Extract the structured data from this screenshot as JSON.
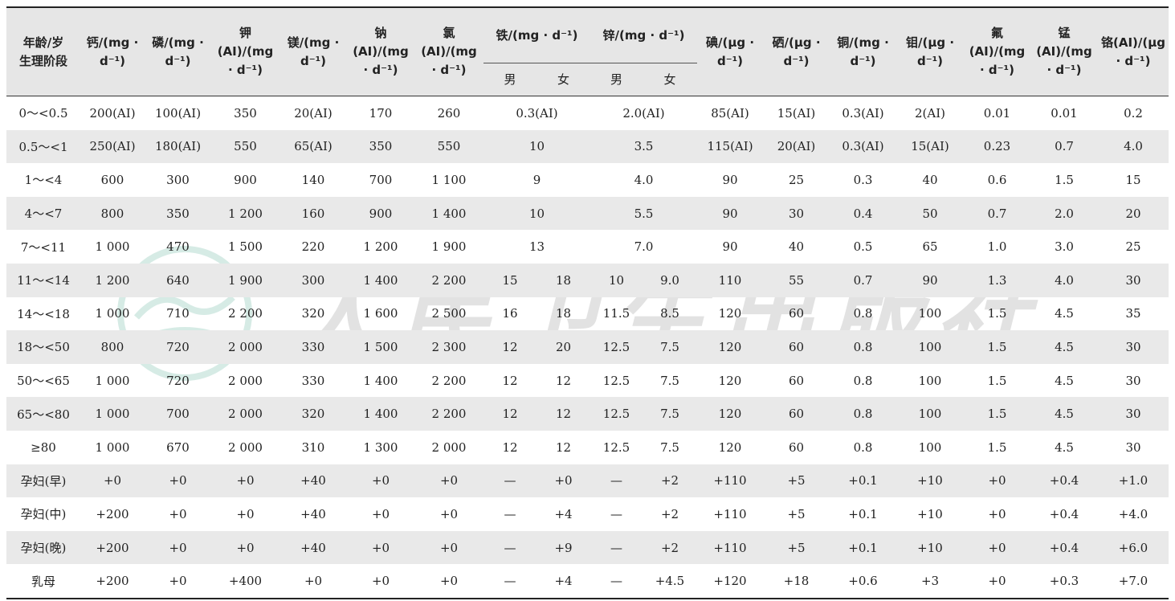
{
  "header": {
    "first_column": [
      "年龄/岁",
      "生理阶段"
    ],
    "columns": [
      "钙/(mg · d⁻¹)",
      "磷/(mg · d⁻¹)",
      "钾(AI)/(mg · d⁻¹)",
      "镁/(mg · d⁻¹)",
      "钠(AI)/(mg · d⁻¹)",
      "氯(AI)/(mg · d⁻¹)",
      "铁/(mg · d⁻¹)",
      "锌/(mg · d⁻¹)",
      "碘/(μg · d⁻¹)",
      "硒/(μg · d⁻¹)",
      "铜/(mg · d⁻¹)",
      "钼/(μg · d⁻¹)",
      "氟(AI)/(mg · d⁻¹)",
      "锰(AI)/(mg · d⁻¹)",
      "铬(AI)/(μg · d⁻¹)"
    ],
    "sub_labels": [
      "男",
      "女",
      "男",
      "女"
    ]
  },
  "table": {
    "rows": [
      [
        "0～<0.5",
        "200(AI)",
        "100(AI)",
        "350",
        "20(AI)",
        "170",
        "260",
        "0.3(AI)",
        "2.0(AI)",
        "85(AI)",
        "15(AI)",
        "0.3(AI)",
        "2(AI)",
        "0.01",
        "0.01",
        "0.2"
      ],
      [
        "0.5～<1",
        "250(AI)",
        "180(AI)",
        "550",
        "65(AI)",
        "350",
        "550",
        "10",
        "3.5",
        "115(AI)",
        "20(AI)",
        "0.3(AI)",
        "15(AI)",
        "0.23",
        "0.7",
        "4.0"
      ],
      [
        "1～<4",
        "600",
        "300",
        "900",
        "140",
        "700",
        "1 100",
        "9",
        "4.0",
        "90",
        "25",
        "0.3",
        "40",
        "0.6",
        "1.5",
        "15"
      ],
      [
        "4～<7",
        "800",
        "350",
        "1 200",
        "160",
        "900",
        "1 400",
        "10",
        "5.5",
        "90",
        "30",
        "0.4",
        "50",
        "0.7",
        "2.0",
        "20"
      ],
      [
        "7～<11",
        "1 000",
        "470",
        "1 500",
        "220",
        "1 200",
        "1 900",
        "13",
        "7.0",
        "90",
        "40",
        "0.5",
        "65",
        "1.0",
        "3.0",
        "25"
      ],
      [
        "11～<14",
        "1 200",
        "640",
        "1 900",
        "300",
        "1 400",
        "2 200",
        "15",
        "18",
        "10",
        "9.0",
        "110",
        "55",
        "0.7",
        "90",
        "1.3",
        "4.0",
        "30"
      ],
      [
        "14～<18",
        "1 000",
        "710",
        "2 200",
        "320",
        "1 600",
        "2 500",
        "16",
        "18",
        "11.5",
        "8.5",
        "120",
        "60",
        "0.8",
        "100",
        "1.5",
        "4.5",
        "35"
      ],
      [
        "18～<50",
        "800",
        "720",
        "2 000",
        "330",
        "1 500",
        "2 300",
        "12",
        "20",
        "12.5",
        "7.5",
        "120",
        "60",
        "0.8",
        "100",
        "1.5",
        "4.5",
        "30"
      ],
      [
        "50～<65",
        "1 000",
        "720",
        "2 000",
        "330",
        "1 400",
        "2 200",
        "12",
        "12",
        "12.5",
        "7.5",
        "120",
        "60",
        "0.8",
        "100",
        "1.5",
        "4.5",
        "30"
      ],
      [
        "65～<80",
        "1 000",
        "700",
        "2 000",
        "320",
        "1 400",
        "2 200",
        "12",
        "12",
        "12.5",
        "7.5",
        "120",
        "60",
        "0.8",
        "100",
        "1.5",
        "4.5",
        "30"
      ],
      [
        "≥80",
        "1 000",
        "670",
        "2 000",
        "310",
        "1 300",
        "2 000",
        "12",
        "12",
        "12.5",
        "7.5",
        "120",
        "60",
        "0.8",
        "100",
        "1.5",
        "4.5",
        "30"
      ],
      [
        "孕妇(早)",
        "+0",
        "+0",
        "+0",
        "+40",
        "+0",
        "+0",
        "—",
        "+0",
        "—",
        "+2",
        "+110",
        "+5",
        "+0.1",
        "+10",
        "+0",
        "+0.4",
        "+1.0"
      ],
      [
        "孕妇(中)",
        "+200",
        "+0",
        "+0",
        "+40",
        "+0",
        "+0",
        "—",
        "+4",
        "—",
        "+2",
        "+110",
        "+5",
        "+0.1",
        "+10",
        "+0",
        "+0.4",
        "+4.0"
      ],
      [
        "孕妇(晚)",
        "+200",
        "+0",
        "+0",
        "+40",
        "+0",
        "+0",
        "—",
        "+9",
        "—",
        "+2",
        "+110",
        "+5",
        "+0.1",
        "+10",
        "+0",
        "+0.4",
        "+6.0"
      ],
      [
        "乳母",
        "+200",
        "+0",
        "+400",
        "+0",
        "+0",
        "+0",
        "—",
        "+4",
        "—",
        "+4.5",
        "+120",
        "+18",
        "+0.6",
        "+3",
        "+0",
        "+0.3",
        "+7.0"
      ]
    ]
  },
  "watermark": "人民卫生出版社"
}
